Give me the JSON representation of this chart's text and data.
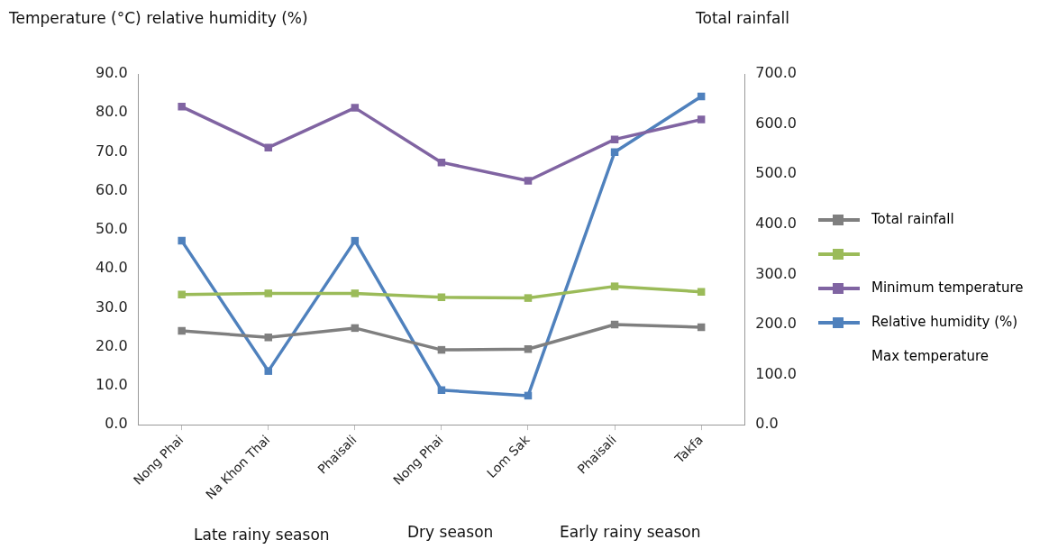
{
  "chart_data": {
    "type": "line",
    "ylabel": "Temperature (°C) relative humidity (%)",
    "y2label": "Total rainfall",
    "categories": [
      "Nong Phai",
      "Na Khon Thai",
      "Phaisali",
      "Nong Phai",
      "Lom Sak",
      "Phaisali",
      "Takfa"
    ],
    "series": [
      {
        "name": "Total rainfall",
        "color": "#7f7f7f",
        "values": [
          24.1,
          22.4,
          24.8,
          19.2,
          19.4,
          25.7,
          25.0
        ]
      },
      {
        "color": "#9bbb59",
        "values": [
          33.4,
          33.7,
          33.7,
          32.7,
          32.5,
          35.5,
          34.1
        ]
      },
      {
        "name": "Minimum temperature",
        "color": "#8064a2",
        "values": [
          81.6,
          71.1,
          81.3,
          67.3,
          62.6,
          73.2,
          78.3
        ]
      },
      {
        "name": "Relative humidity (%)",
        "color": "#4f81bd",
        "axis": "y2",
        "values": [
          367,
          107,
          367,
          69,
          58,
          544,
          655
        ]
      }
    ],
    "ylim": [
      0,
      90
    ],
    "yticks": [
      {
        "value": 0,
        "label": "0.0"
      },
      {
        "value": 10,
        "label": "10.0"
      },
      {
        "value": 20,
        "label": "20.0"
      },
      {
        "value": 30,
        "label": "30.0"
      },
      {
        "value": 40,
        "label": "40.0"
      },
      {
        "value": 50,
        "label": "50.0"
      },
      {
        "value": 60,
        "label": "60.0"
      },
      {
        "value": 70,
        "label": "70.0"
      },
      {
        "value": 80,
        "label": "80.0"
      },
      {
        "value": 90,
        "label": "90.0"
      }
    ],
    "y2lim": [
      0,
      700
    ],
    "y2ticks": [
      {
        "value": 0,
        "label": "0.0"
      },
      {
        "value": 100,
        "label": "100.0"
      },
      {
        "value": 200,
        "label": "200.0"
      },
      {
        "value": 300,
        "label": "300.0"
      },
      {
        "value": 400,
        "label": "400.0"
      },
      {
        "value": 500,
        "label": "500.0"
      },
      {
        "value": 600,
        "label": "600.0"
      },
      {
        "value": 700,
        "label": "700.0"
      }
    ],
    "annotations": [
      "Late rainy season",
      "Dry season",
      "Early rainy season",
      "Max temperature"
    ],
    "grid": false,
    "legend": "right",
    "marker": "square",
    "line_style": "solid"
  }
}
